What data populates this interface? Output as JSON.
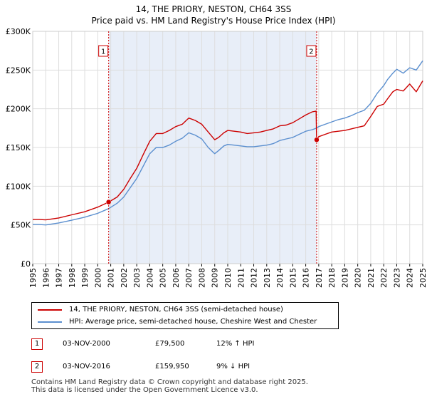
{
  "titles": {
    "line1": "14, THE PRIORY, NESTON, CH64 3SS",
    "line2": "Price paid vs. HM Land Registry's House Price Index (HPI)"
  },
  "legend": {
    "property": "14, THE PRIORY, NESTON, CH64 3SS (semi-detached house)",
    "hpi": "HPI: Average price, semi-detached house, Cheshire West and Chester"
  },
  "annotations": [
    {
      "num": "1",
      "date": "03-NOV-2000",
      "price": "£79,500",
      "hpi": "12% ↑ HPI"
    },
    {
      "num": "2",
      "date": "03-NOV-2016",
      "price": "£159,950",
      "hpi": "9% ↓ HPI"
    }
  ],
  "footer": {
    "line1": "Contains HM Land Registry data © Crown copyright and database right 2025.",
    "line2": "This data is licensed under the Open Government Licence v3.0."
  },
  "colors": {
    "property": "#cc0000",
    "hpi": "#5b8fcf",
    "shade": "#e8eef8",
    "grid": "#dddddd"
  },
  "chart_data": {
    "type": "line",
    "title": "14, THE PRIORY, NESTON, CH64 3SS",
    "subtitle": "Price paid vs. HM Land Registry's House Price Index (HPI)",
    "xlabel": "",
    "ylabel": "",
    "xlim": [
      1995,
      2025
    ],
    "ylim": [
      0,
      300000
    ],
    "grid": true,
    "legend_position": "bottom",
    "y_ticks": [
      {
        "value": 0,
        "label": "£0"
      },
      {
        "value": 50000,
        "label": "£50K"
      },
      {
        "value": 100000,
        "label": "£100K"
      },
      {
        "value": 150000,
        "label": "£150K"
      },
      {
        "value": 200000,
        "label": "£200K"
      },
      {
        "value": 250000,
        "label": "£250K"
      },
      {
        "value": 300000,
        "label": "£300K"
      }
    ],
    "x_ticks": [
      "1995",
      "1996",
      "1997",
      "1998",
      "1999",
      "2000",
      "2001",
      "2002",
      "2003",
      "2004",
      "2005",
      "2006",
      "2007",
      "2008",
      "2009",
      "2010",
      "2011",
      "2012",
      "2013",
      "2014",
      "2015",
      "2016",
      "2017",
      "2018",
      "2019",
      "2020",
      "2021",
      "2022",
      "2023",
      "2024",
      "2025"
    ],
    "shaded_region": [
      2000.84,
      2016.84
    ],
    "markers": [
      {
        "label": "1",
        "x": 2000.84,
        "y": 79500
      },
      {
        "label": "2",
        "x": 2016.84,
        "y": 159950
      }
    ],
    "series": [
      {
        "name": "14, THE PRIORY, NESTON, CH64 3SS (semi-detached house)",
        "x": [
          1995,
          1995.5,
          1996,
          1997,
          1998,
          1999,
          2000,
          2000.84,
          2001.5,
          2002,
          2002.5,
          2003,
          2003.5,
          2004,
          2004.5,
          2005,
          2005.5,
          2006,
          2006.5,
          2007,
          2007.5,
          2008,
          2008.5,
          2009,
          2009.3,
          2009.7,
          2010,
          2010.5,
          2011,
          2011.5,
          2012,
          2012.5,
          2013,
          2013.5,
          2014,
          2014.5,
          2015,
          2015.5,
          2016,
          2016.5,
          2016.8,
          2016.84,
          2017,
          2017.5,
          2018,
          2018.5,
          2019,
          2019.5,
          2020,
          2020.5,
          2021,
          2021.5,
          2022,
          2022.3,
          2022.7,
          2023,
          2023.5,
          2024,
          2024.5,
          2025
        ],
        "y": [
          57000,
          57000,
          56500,
          59000,
          63000,
          67000,
          73000,
          79500,
          86000,
          96000,
          110000,
          123000,
          141000,
          158000,
          168000,
          168000,
          172000,
          177000,
          180000,
          188000,
          185000,
          180000,
          170000,
          160000,
          163000,
          169000,
          172000,
          171000,
          170000,
          168000,
          169000,
          170000,
          172000,
          174000,
          178000,
          179000,
          182000,
          187000,
          192000,
          196000,
          197000,
          159950,
          164000,
          167000,
          170000,
          171000,
          172000,
          174000,
          176000,
          178000,
          190000,
          203000,
          206000,
          213000,
          222000,
          225000,
          223000,
          232000,
          222000,
          236000
        ]
      },
      {
        "name": "HPI: Average price, semi-detached house, Cheshire West and Chester",
        "x": [
          1995,
          1995.5,
          1996,
          1997,
          1998,
          1999,
          2000,
          2000.84,
          2001.5,
          2002,
          2002.5,
          2003,
          2003.5,
          2004,
          2004.5,
          2005,
          2005.5,
          2006,
          2006.5,
          2007,
          2007.5,
          2008,
          2008.5,
          2009,
          2009.3,
          2009.7,
          2010,
          2010.5,
          2011,
          2011.5,
          2012,
          2012.5,
          2013,
          2013.5,
          2014,
          2014.5,
          2015,
          2015.5,
          2016,
          2016.5,
          2016.84,
          2017,
          2017.5,
          2018,
          2018.5,
          2019,
          2019.5,
          2020,
          2020.5,
          2021,
          2021.5,
          2022,
          2022.3,
          2022.7,
          2023,
          2023.5,
          2024,
          2024.5,
          2025
        ],
        "y": [
          50500,
          50500,
          50000,
          52500,
          56000,
          60000,
          65000,
          71000,
          78000,
          86000,
          98000,
          110000,
          126000,
          142000,
          150000,
          150000,
          153000,
          158000,
          162000,
          169000,
          166000,
          161000,
          150000,
          142000,
          146000,
          152000,
          154000,
          153000,
          152000,
          151000,
          151000,
          152000,
          153000,
          155000,
          159000,
          161000,
          163000,
          167000,
          171000,
          173000,
          175000,
          177000,
          180000,
          183000,
          186000,
          188000,
          191000,
          195000,
          198000,
          207000,
          220000,
          230000,
          238000,
          246000,
          251000,
          246000,
          253000,
          250000,
          262000
        ]
      }
    ]
  }
}
